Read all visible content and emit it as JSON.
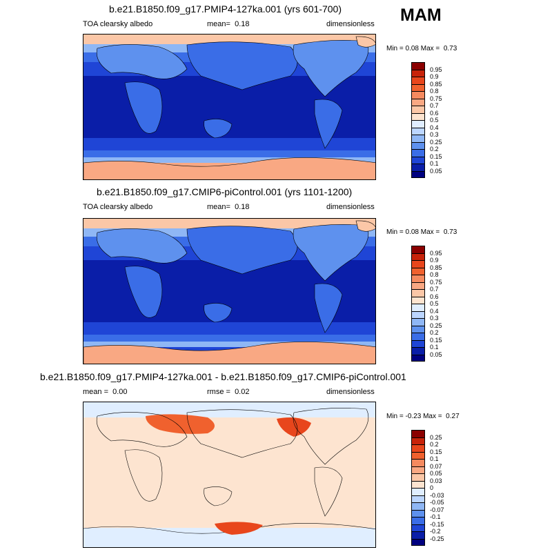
{
  "season_label": "MAM",
  "chart_data": [
    {
      "type": "heatmap",
      "title": "b.e21.B1850.f09_g17.PMIP4-127ka.001 (yrs 601-700)",
      "variable_label": "TOA clearsky albedo",
      "mean_label": "mean=",
      "mean_value": "0.18",
      "rmse_label": "",
      "rmse_value": "",
      "units": "dimensionless",
      "min_label": "Min =",
      "min_value": "0.08",
      "max_label": "Max =",
      "max_value": "0.73",
      "levels": [
        "0.95",
        "0.9",
        "0.85",
        "0.8",
        "0.75",
        "0.7",
        "0.6",
        "0.5",
        "0.4",
        "0.3",
        "0.25",
        "0.2",
        "0.15",
        "0.1",
        "0.05"
      ],
      "colors": [
        "#8b0000",
        "#c8230a",
        "#e8461c",
        "#f0612e",
        "#f58a5f",
        "#f9a883",
        "#fbc7a7",
        "#fde4d0",
        "#e0eeff",
        "#bcd6ff",
        "#8fb7f5",
        "#5e91ee",
        "#3a6de7",
        "#1f45d6",
        "#0a1ea8",
        "#000080"
      ]
    },
    {
      "type": "heatmap",
      "title": "b.e21.B1850.f09_g17.CMIP6-piControl.001 (yrs 1101-1200)",
      "variable_label": "TOA clearsky albedo",
      "mean_label": "mean=",
      "mean_value": "0.18",
      "rmse_label": "",
      "rmse_value": "",
      "units": "dimensionless",
      "min_label": "Min =",
      "min_value": "0.08",
      "max_label": "Max =",
      "max_value": "0.73",
      "levels": [
        "0.95",
        "0.9",
        "0.85",
        "0.8",
        "0.75",
        "0.7",
        "0.6",
        "0.5",
        "0.4",
        "0.3",
        "0.25",
        "0.2",
        "0.15",
        "0.1",
        "0.05"
      ],
      "colors": [
        "#8b0000",
        "#c8230a",
        "#e8461c",
        "#f0612e",
        "#f58a5f",
        "#f9a883",
        "#fbc7a7",
        "#fde4d0",
        "#e0eeff",
        "#bcd6ff",
        "#8fb7f5",
        "#5e91ee",
        "#3a6de7",
        "#1f45d6",
        "#0a1ea8",
        "#000080"
      ]
    },
    {
      "type": "heatmap",
      "title": "b.e21.B1850.f09_g17.PMIP4-127ka.001 - b.e21.B1850.f09_g17.CMIP6-piControl.001",
      "variable_label": "",
      "mean_label": "mean =",
      "mean_value": "0.00",
      "rmse_label": "rmse =",
      "rmse_value": "0.02",
      "units": "dimensionless",
      "min_label": "Min =",
      "min_value": "-0.23",
      "max_label": "Max =",
      "max_value": "0.27",
      "levels": [
        "0.25",
        "0.2",
        "0.15",
        "0.1",
        "0.07",
        "0.05",
        "0.03",
        "0",
        "-0.03",
        "-0.05",
        "-0.07",
        "-0.1",
        "-0.15",
        "-0.2",
        "-0.25"
      ],
      "colors": [
        "#8b0000",
        "#c8230a",
        "#e8461c",
        "#f0612e",
        "#f58a5f",
        "#f9a883",
        "#fbc7a7",
        "#fde4d0",
        "#e0eeff",
        "#bcd6ff",
        "#8fb7f5",
        "#5e91ee",
        "#3a6de7",
        "#1f45d6",
        "#0a1ea8",
        "#000080"
      ]
    }
  ]
}
